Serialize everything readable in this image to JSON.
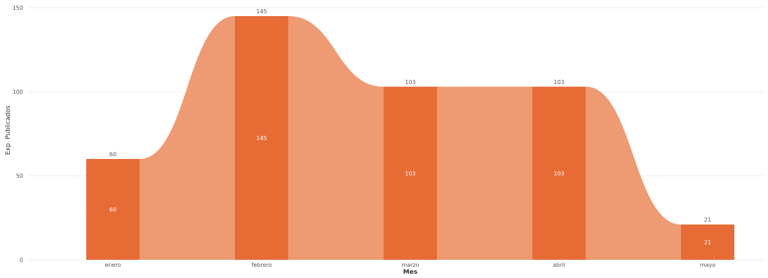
{
  "chart_data": {
    "type": "bar",
    "categories": [
      "enero",
      "febrero",
      "marzo",
      "abril",
      "mayo"
    ],
    "values": [
      60,
      145,
      103,
      103,
      21
    ],
    "xlabel": "Mes",
    "ylabel": "Exp. Publicados",
    "ylim": [
      0,
      150
    ],
    "yticks": [
      0,
      50,
      100,
      150
    ],
    "grid": true,
    "legend": "none",
    "data_labels_outside": true,
    "data_labels_inside": true,
    "ribbon": true,
    "colors": {
      "bar": "#e66b35",
      "ribbon": "#ee9a72",
      "grid": "#eeeeee",
      "text": "#555555"
    }
  }
}
